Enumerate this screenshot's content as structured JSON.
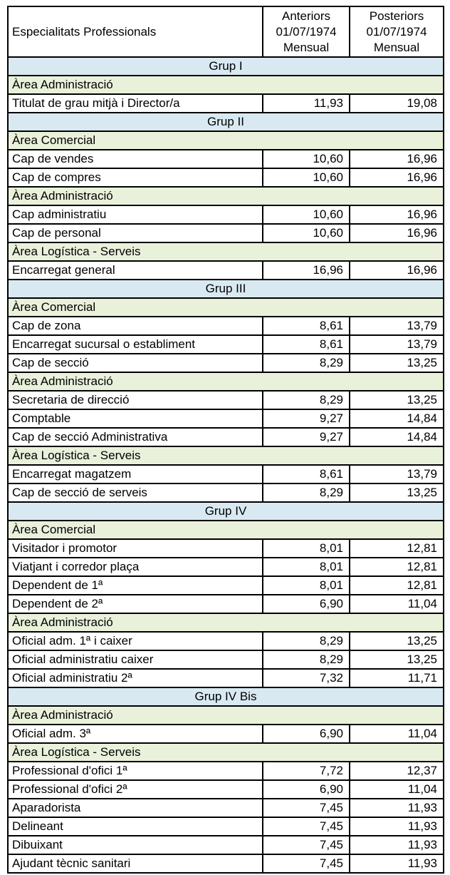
{
  "colors": {
    "group_row_bg": "#d9e9f2",
    "area_row_bg": "#e9f1db",
    "border": "#000000",
    "text": "#000000"
  },
  "table": {
    "header": {
      "col1": "Especialitats Professionals",
      "col2_lines": [
        "Anteriors",
        "01/07/1974",
        "Mensual"
      ],
      "col3_lines": [
        "Posteriors",
        "01/07/1974",
        "Mensual"
      ]
    },
    "rows": [
      {
        "type": "group",
        "label": "Grup I"
      },
      {
        "type": "area",
        "label": "Àrea Administració"
      },
      {
        "type": "data",
        "label": "Titulat de grau mitjà i Director/a",
        "anterior": "11,93",
        "posterior": "19,08"
      },
      {
        "type": "group",
        "label": "Grup II"
      },
      {
        "type": "area",
        "label": "Àrea Comercial"
      },
      {
        "type": "data",
        "label": "Cap de vendes",
        "anterior": "10,60",
        "posterior": "16,96"
      },
      {
        "type": "data",
        "label": "Cap de compres",
        "anterior": "10,60",
        "posterior": "16,96"
      },
      {
        "type": "area",
        "label": "Àrea Administració"
      },
      {
        "type": "data",
        "label": "Cap administratiu",
        "anterior": "10,60",
        "posterior": "16,96"
      },
      {
        "type": "data",
        "label": "Cap de personal",
        "anterior": "10,60",
        "posterior": "16,96"
      },
      {
        "type": "area",
        "label": "Àrea Logística - Serveis"
      },
      {
        "type": "data",
        "label": "Encarregat general",
        "anterior": "16,96",
        "posterior": "16,96"
      },
      {
        "type": "group",
        "label": "Grup III"
      },
      {
        "type": "area",
        "label": "Àrea Comercial"
      },
      {
        "type": "data",
        "label": "Cap de zona",
        "anterior": "8,61",
        "posterior": "13,79"
      },
      {
        "type": "data",
        "label": "Encarregat sucursal o establiment",
        "anterior": "8,61",
        "posterior": "13,79"
      },
      {
        "type": "data",
        "label": "Cap de secció",
        "anterior": "8,29",
        "posterior": "13,25"
      },
      {
        "type": "area",
        "label": "Àrea Administració"
      },
      {
        "type": "data",
        "label": "Secretaria de direcció",
        "anterior": "8,29",
        "posterior": "13,25"
      },
      {
        "type": "data",
        "label": "Comptable",
        "anterior": "9,27",
        "posterior": "14,84"
      },
      {
        "type": "data",
        "label": "Cap de secció Administrativa",
        "anterior": "9,27",
        "posterior": "14,84"
      },
      {
        "type": "area",
        "label": "Àrea Logística - Serveis"
      },
      {
        "type": "data",
        "label": "Encarregat magatzem",
        "anterior": "8,61",
        "posterior": "13,79"
      },
      {
        "type": "data",
        "label": "Cap de secció de serveis",
        "anterior": "8,29",
        "posterior": "13,25"
      },
      {
        "type": "group",
        "label": "Grup IV"
      },
      {
        "type": "area",
        "label": "Àrea Comercial"
      },
      {
        "type": "data",
        "label": "Visitador i promotor",
        "anterior": "8,01",
        "posterior": "12,81"
      },
      {
        "type": "data",
        "label": "Viatjant i corredor plaça",
        "anterior": "8,01",
        "posterior": "12,81"
      },
      {
        "type": "data",
        "label": "Dependent de 1ª",
        "anterior": "8,01",
        "posterior": "12,81"
      },
      {
        "type": "data",
        "label": "Dependent de 2ª",
        "anterior": "6,90",
        "posterior": "11,04"
      },
      {
        "type": "area",
        "label": "Àrea Administració"
      },
      {
        "type": "data",
        "label": "Oficial adm. 1ª i caixer",
        "anterior": "8,29",
        "posterior": "13,25"
      },
      {
        "type": "data",
        "label": "Oficial administratiu caixer",
        "anterior": "8,29",
        "posterior": "13,25"
      },
      {
        "type": "data",
        "label": "Oficial administratiu 2ª",
        "anterior": "7,32",
        "posterior": "11,71"
      },
      {
        "type": "group",
        "label": "Grup IV Bis"
      },
      {
        "type": "area",
        "label": "Àrea Administració"
      },
      {
        "type": "data",
        "label": "Oficial adm. 3ª",
        "anterior": "6,90",
        "posterior": "11,04"
      },
      {
        "type": "area",
        "label": "Àrea Logística - Serveis"
      },
      {
        "type": "data",
        "label": "Professional d'ofici 1ª",
        "anterior": "7,72",
        "posterior": "12,37"
      },
      {
        "type": "data",
        "label": "Professional d'ofici 2ª",
        "anterior": "6,90",
        "posterior": "11,04"
      },
      {
        "type": "data",
        "label": "Aparadorista",
        "anterior": "7,45",
        "posterior": "11,93"
      },
      {
        "type": "data",
        "label": "Delineant",
        "anterior": "7,45",
        "posterior": "11,93"
      },
      {
        "type": "data",
        "label": "Dibuixant",
        "anterior": "7,45",
        "posterior": "11,93"
      },
      {
        "type": "data",
        "label": "Ajudant tècnic sanitari",
        "anterior": "7,45",
        "posterior": "11,93"
      }
    ]
  }
}
